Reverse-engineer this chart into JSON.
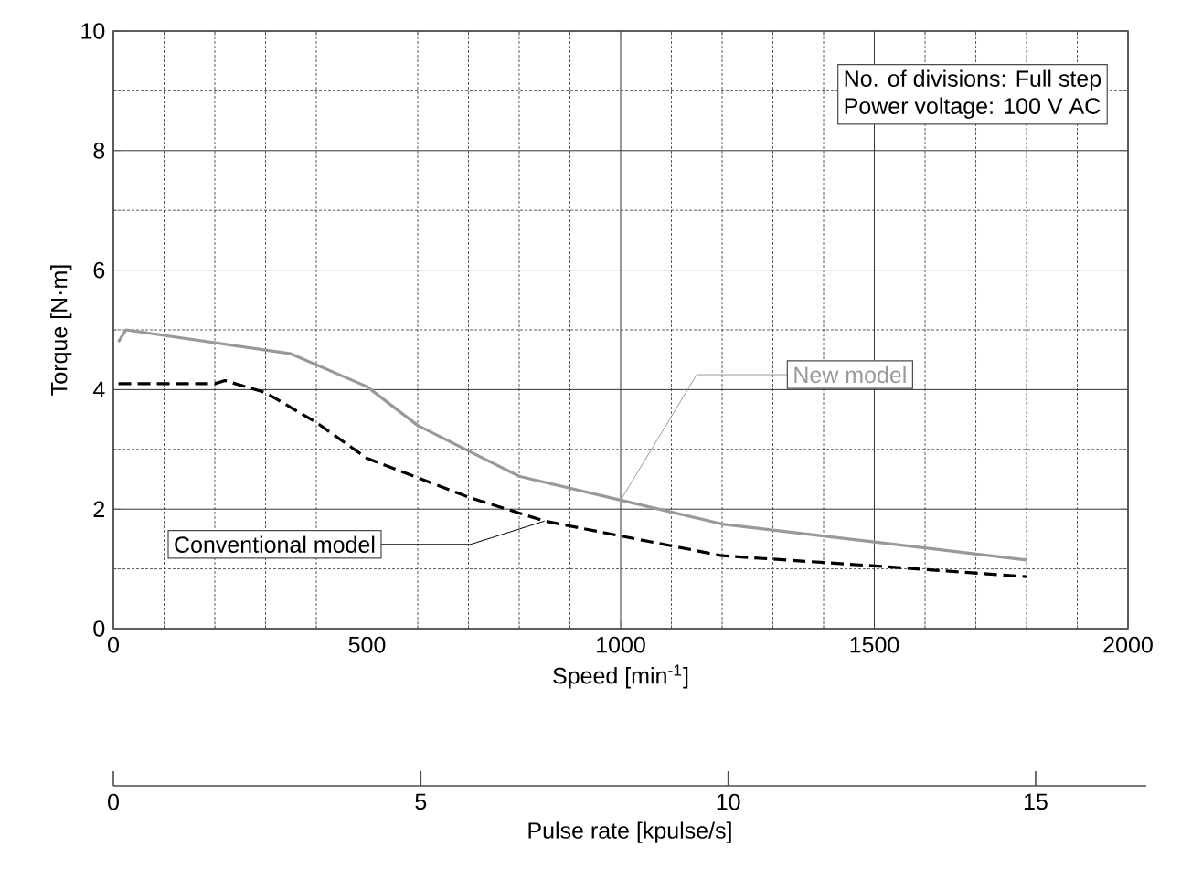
{
  "chart_data": {
    "type": "line",
    "xlabel": "Speed  [min$^{-1}$]",
    "ylabel": "Torque  [N·m]",
    "x2label": "Pulse rate  [kpulse/s]",
    "xlim": [
      0,
      2000
    ],
    "xticks": [
      0,
      500,
      1000,
      1500,
      2000
    ],
    "ylim": [
      0,
      10
    ],
    "yticks": [
      0,
      2,
      4,
      6,
      8,
      10
    ],
    "x2lim": [
      0,
      16.8
    ],
    "x2ticks": [
      0,
      5,
      10,
      15
    ],
    "grid": true,
    "annotations": [
      "No. of divisions: Full step",
      "Power voltage: 100 V AC"
    ],
    "series": [
      {
        "name": "New model",
        "color": "#999999",
        "line_style": "solid",
        "x": [
          10,
          25,
          350,
          500,
          600,
          800,
          1000,
          1200,
          1500,
          1800
        ],
        "values": [
          4.8,
          5.0,
          4.6,
          4.05,
          3.4,
          2.55,
          2.15,
          1.75,
          1.45,
          1.15
        ]
      },
      {
        "name": "Conventional model",
        "color": "#000000",
        "line_style": "dashed",
        "x": [
          10,
          200,
          220,
          300,
          400,
          500,
          700,
          850,
          1200,
          1500,
          1800
        ],
        "values": [
          4.1,
          4.1,
          4.15,
          3.95,
          3.45,
          2.85,
          2.2,
          1.8,
          1.22,
          1.05,
          0.87
        ]
      }
    ]
  }
}
